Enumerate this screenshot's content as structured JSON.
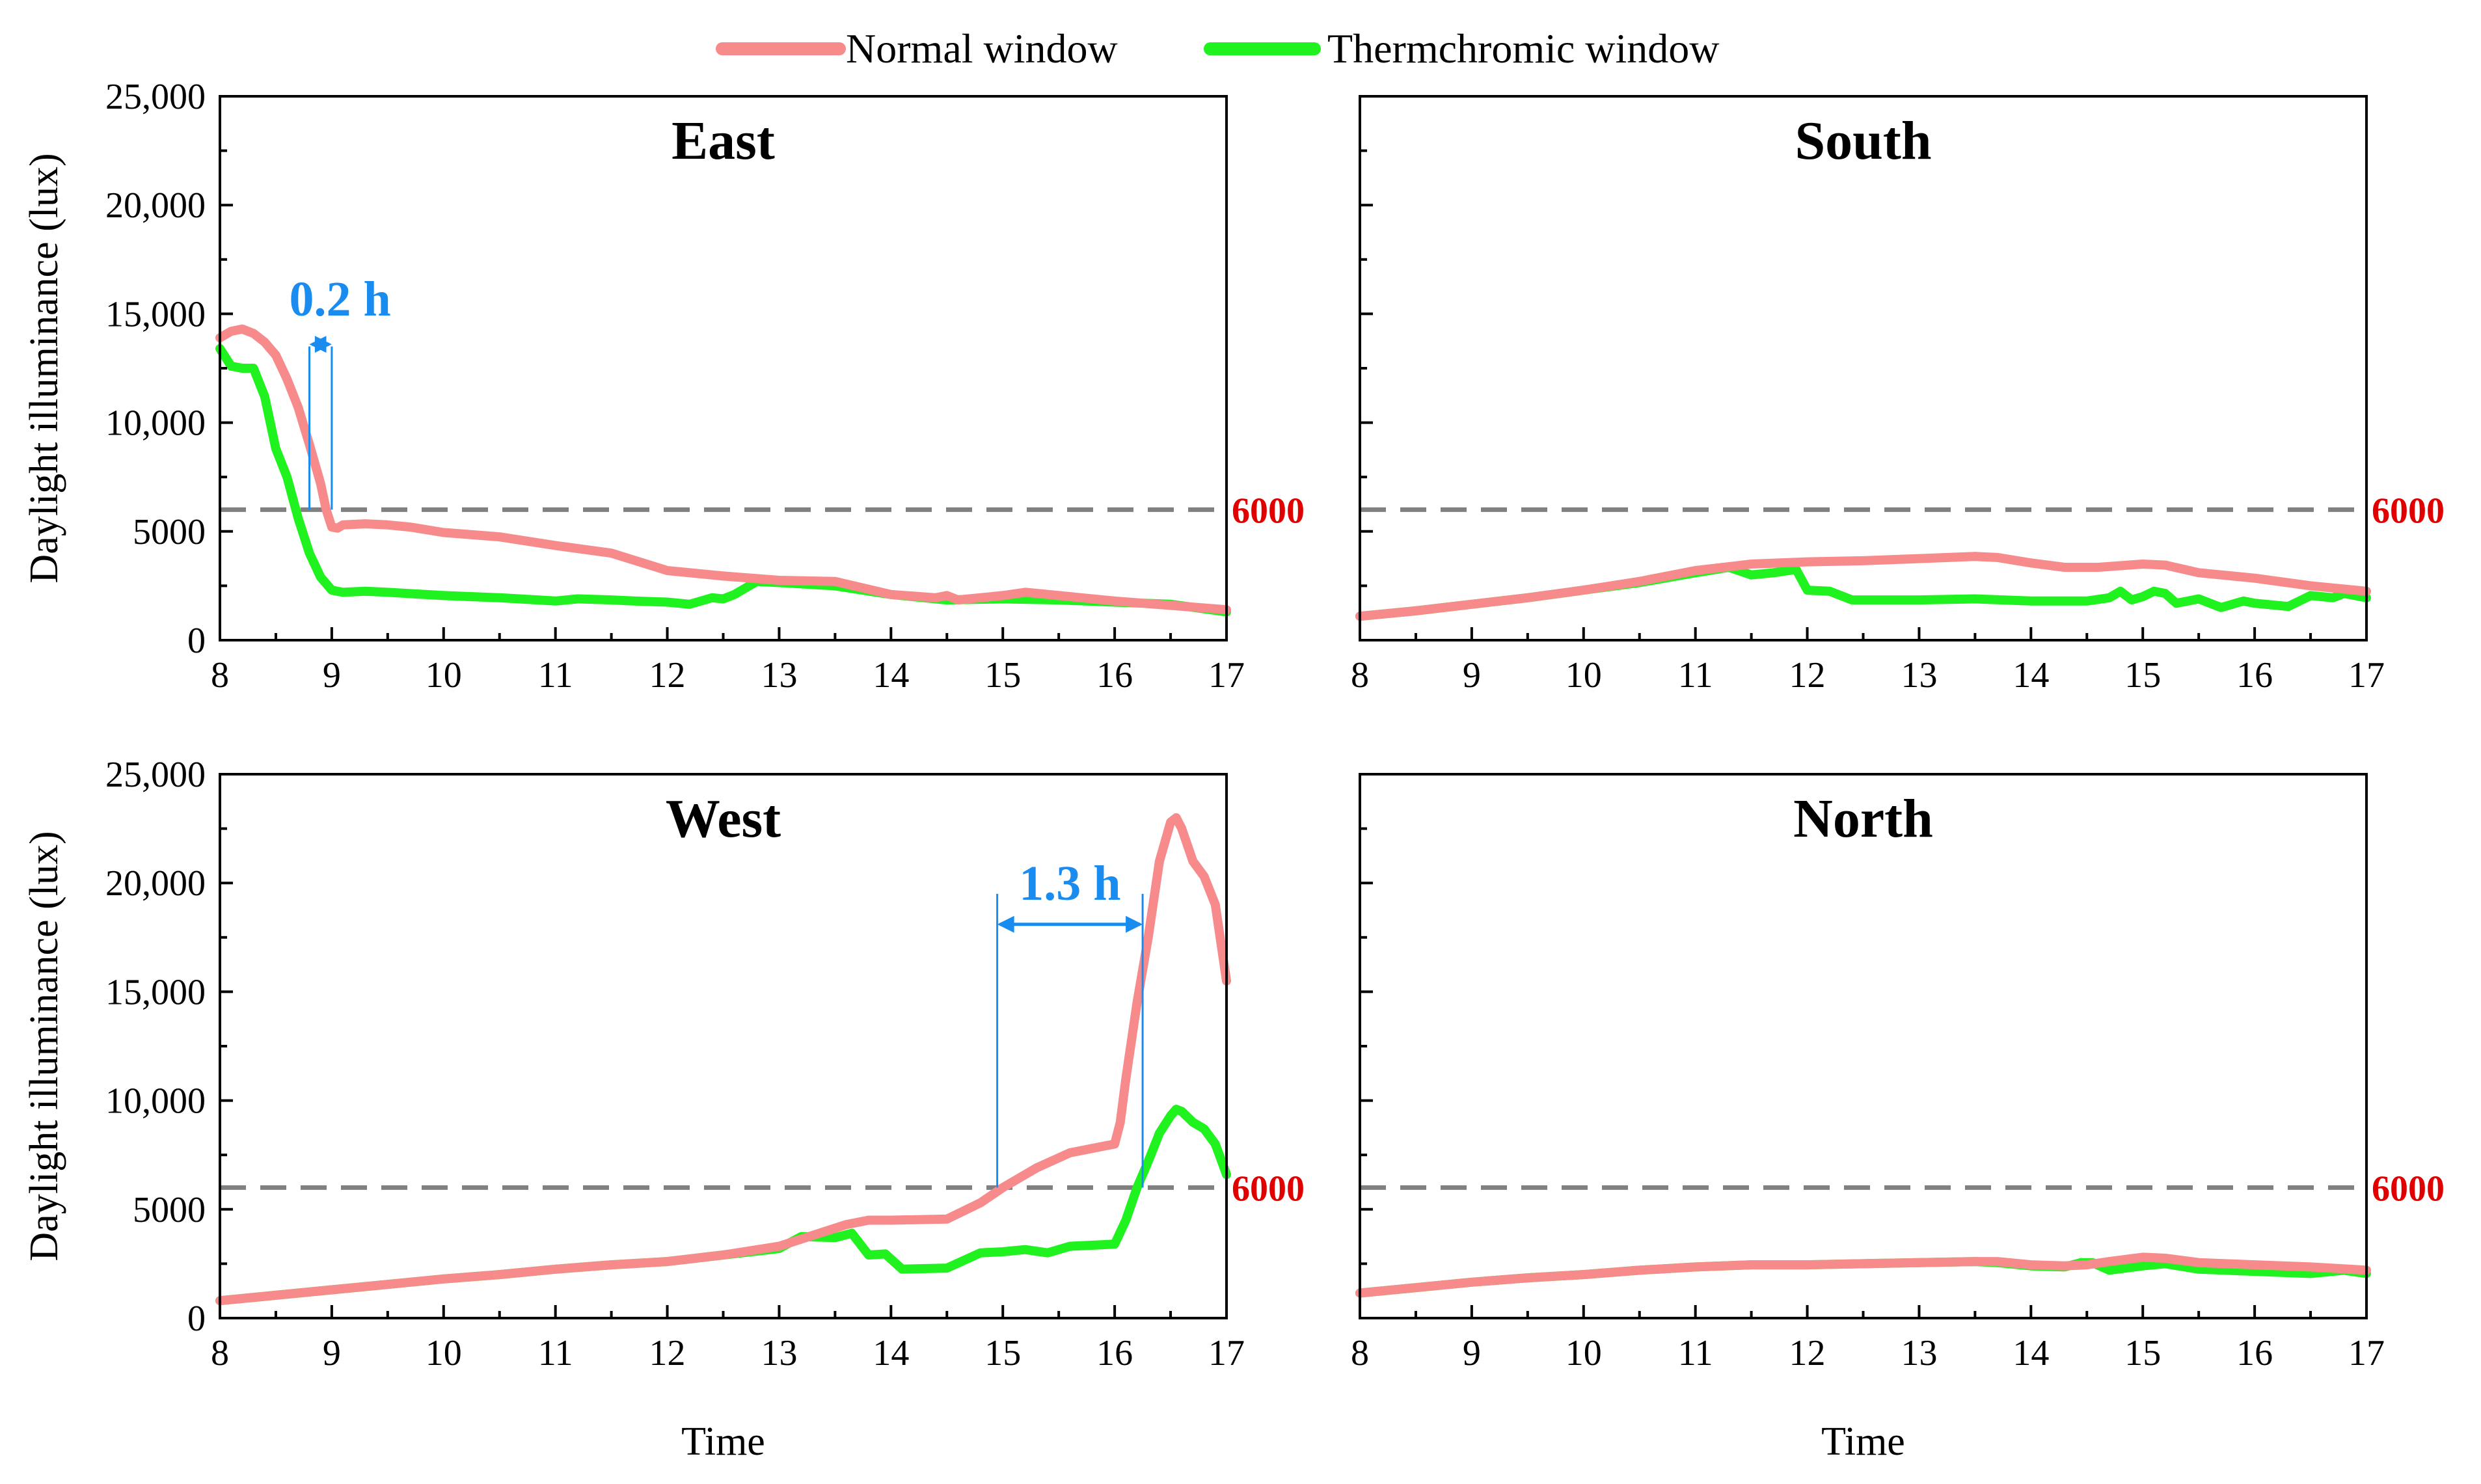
{
  "legend": {
    "normal_label": "Normal window",
    "thermo_label": "Thermchromic window"
  },
  "colors": {
    "normal": "#f78b8b",
    "thermo": "#1ff21f",
    "threshold_line": "#808080",
    "threshold_text": "#e00000",
    "annotation": "#1a8cf0",
    "axis": "#000000"
  },
  "chart_data": [
    {
      "type": "line",
      "title": "East",
      "xlabel": "",
      "ylabel": "Daylight illuminance (lux)",
      "xlim": [
        8,
        17
      ],
      "ylim": [
        0,
        25000
      ],
      "x_ticks": [
        "8",
        "9",
        "10",
        "11",
        "12",
        "13",
        "14",
        "15",
        "16",
        "17"
      ],
      "y_ticks": [
        "0",
        "5000",
        "10,000",
        "15,000",
        "20,000",
        "25,000"
      ],
      "threshold": {
        "value": 6000,
        "label": "6000"
      },
      "annotation": {
        "label": "0.2 h",
        "x_start": 8.8,
        "x_end": 9.0,
        "y_arrow": 13600,
        "y_label": 15700,
        "y_top": 13500,
        "y_bottom": 6000
      },
      "series": [
        {
          "name": "Normal window",
          "x": [
            8.0,
            8.1,
            8.2,
            8.3,
            8.4,
            8.5,
            8.6,
            8.7,
            8.8,
            8.9,
            8.95,
            9.0,
            9.05,
            9.1,
            9.3,
            9.5,
            9.7,
            10.0,
            10.5,
            11.0,
            11.5,
            12.0,
            12.5,
            13.0,
            13.5,
            14.0,
            14.4,
            14.5,
            14.6,
            15.0,
            15.2,
            15.5,
            16.0,
            16.5,
            17.0
          ],
          "values": [
            13900,
            14200,
            14300,
            14100,
            13700,
            13100,
            12000,
            10700,
            9000,
            7200,
            6000,
            5200,
            5150,
            5300,
            5350,
            5300,
            5200,
            4950,
            4750,
            4350,
            4000,
            3200,
            2950,
            2750,
            2700,
            2100,
            1950,
            2050,
            1850,
            2050,
            2200,
            2050,
            1800,
            1600,
            1400
          ]
        },
        {
          "name": "Thermchromic window",
          "x": [
            8.0,
            8.1,
            8.2,
            8.3,
            8.4,
            8.5,
            8.6,
            8.7,
            8.8,
            8.9,
            9.0,
            9.1,
            9.3,
            9.5,
            10.0,
            10.5,
            11.0,
            11.2,
            11.5,
            11.7,
            12.0,
            12.2,
            12.4,
            12.5,
            12.6,
            12.8,
            13.0,
            13.5,
            14.0,
            14.5,
            15.0,
            15.5,
            16.0,
            16.5,
            17.0
          ],
          "values": [
            13400,
            12600,
            12500,
            12500,
            11200,
            8800,
            7500,
            5600,
            4000,
            2900,
            2300,
            2200,
            2250,
            2200,
            2050,
            1950,
            1800,
            1900,
            1850,
            1800,
            1750,
            1650,
            1950,
            1900,
            2100,
            2700,
            2650,
            2500,
            2100,
            1850,
            1900,
            1850,
            1750,
            1650,
            1300
          ]
        }
      ]
    },
    {
      "type": "line",
      "title": "South",
      "xlabel": "",
      "ylabel": "",
      "xlim": [
        8,
        17
      ],
      "ylim": [
        0,
        25000
      ],
      "x_ticks": [
        "8",
        "9",
        "10",
        "11",
        "12",
        "13",
        "14",
        "15",
        "16",
        "17"
      ],
      "y_ticks": [],
      "threshold": {
        "value": 6000,
        "label": "6000"
      },
      "series": [
        {
          "name": "Normal window",
          "x": [
            8.0,
            8.5,
            9.0,
            9.5,
            10.0,
            10.5,
            11.0,
            11.5,
            12.0,
            12.5,
            13.0,
            13.5,
            13.7,
            14.0,
            14.3,
            14.6,
            15.0,
            15.2,
            15.5,
            16.0,
            16.5,
            17.0
          ],
          "values": [
            1100,
            1350,
            1650,
            1950,
            2300,
            2700,
            3200,
            3500,
            3600,
            3650,
            3750,
            3850,
            3800,
            3550,
            3350,
            3350,
            3500,
            3450,
            3100,
            2850,
            2500,
            2250
          ]
        },
        {
          "name": "Thermchromic window",
          "x": [
            8.0,
            8.5,
            9.0,
            9.5,
            10.0,
            10.5,
            11.0,
            11.3,
            11.5,
            11.7,
            11.9,
            12.0,
            12.2,
            12.4,
            13.0,
            13.5,
            14.0,
            14.5,
            14.7,
            14.8,
            14.9,
            15.0,
            15.1,
            15.2,
            15.3,
            15.5,
            15.7,
            15.9,
            16.0,
            16.3,
            16.5,
            16.7,
            16.8,
            17.0
          ],
          "values": [
            1100,
            1350,
            1650,
            1950,
            2300,
            2650,
            3100,
            3350,
            3000,
            3100,
            3250,
            2300,
            2250,
            1850,
            1850,
            1900,
            1800,
            1800,
            1950,
            2250,
            1850,
            2000,
            2250,
            2150,
            1700,
            1900,
            1500,
            1800,
            1700,
            1550,
            2050,
            1950,
            2150,
            1950
          ]
        }
      ]
    },
    {
      "type": "line",
      "title": "West",
      "xlabel": "Time",
      "ylabel": "Daylight illuminance (lux)",
      "xlim": [
        8,
        17
      ],
      "ylim": [
        0,
        25000
      ],
      "x_ticks": [
        "8",
        "9",
        "10",
        "11",
        "12",
        "13",
        "14",
        "15",
        "16",
        "17"
      ],
      "y_ticks": [
        "0",
        "5000",
        "10,000",
        "15,000",
        "20,000",
        "25,000"
      ],
      "threshold": {
        "value": 6000,
        "label": "6000"
      },
      "annotation": {
        "label": "1.3 h",
        "x_start": 14.95,
        "x_end": 16.25,
        "y_arrow": 18100,
        "y_label": 20000,
        "y_top": 19500,
        "y_bottom": 6000
      },
      "series": [
        {
          "name": "Normal window",
          "x": [
            8.0,
            8.5,
            9.0,
            9.5,
            10.0,
            10.5,
            11.0,
            11.5,
            12.0,
            12.5,
            13.0,
            13.3,
            13.6,
            13.8,
            14.0,
            14.5,
            14.8,
            15.0,
            15.3,
            15.6,
            15.9,
            16.0,
            16.05,
            16.1,
            16.2,
            16.3,
            16.4,
            16.5,
            16.55,
            16.6,
            16.7,
            16.8,
            16.9,
            17.0
          ],
          "values": [
            800,
            1050,
            1300,
            1550,
            1800,
            2000,
            2250,
            2450,
            2600,
            2900,
            3300,
            3800,
            4300,
            4500,
            4500,
            4550,
            5300,
            6000,
            6900,
            7600,
            7900,
            8000,
            9000,
            11000,
            14500,
            17500,
            21000,
            22800,
            23000,
            22500,
            21000,
            20300,
            19000,
            15500
          ]
        },
        {
          "name": "Thermchromic window",
          "x": [
            8.0,
            8.5,
            9.0,
            9.5,
            10.0,
            10.5,
            11.0,
            11.5,
            12.0,
            12.5,
            13.0,
            13.2,
            13.5,
            13.65,
            13.8,
            13.95,
            14.1,
            14.5,
            14.8,
            15.0,
            15.2,
            15.4,
            15.6,
            15.8,
            16.0,
            16.1,
            16.2,
            16.3,
            16.4,
            16.5,
            16.55,
            16.6,
            16.7,
            16.8,
            16.9,
            17.0
          ],
          "values": [
            800,
            1050,
            1300,
            1550,
            1800,
            2000,
            2250,
            2450,
            2600,
            2900,
            3200,
            3750,
            3700,
            3900,
            2900,
            2950,
            2250,
            2300,
            3000,
            3050,
            3150,
            3000,
            3300,
            3350,
            3400,
            4500,
            6000,
            7200,
            8500,
            9300,
            9600,
            9500,
            9000,
            8700,
            8000,
            6600
          ]
        }
      ]
    },
    {
      "type": "line",
      "title": "North",
      "xlabel": "Time",
      "ylabel": "",
      "xlim": [
        8,
        17
      ],
      "ylim": [
        0,
        25000
      ],
      "x_ticks": [
        "8",
        "9",
        "10",
        "11",
        "12",
        "13",
        "14",
        "15",
        "16",
        "17"
      ],
      "y_ticks": [],
      "threshold": {
        "value": 6000,
        "label": "6000"
      },
      "series": [
        {
          "name": "Normal window",
          "x": [
            8.0,
            8.5,
            9.0,
            9.5,
            10.0,
            10.5,
            11.0,
            11.5,
            12.0,
            12.5,
            13.0,
            13.5,
            13.7,
            14.0,
            14.3,
            14.5,
            14.7,
            15.0,
            15.2,
            15.5,
            16.0,
            16.5,
            17.0
          ],
          "values": [
            1150,
            1400,
            1650,
            1850,
            2000,
            2200,
            2350,
            2450,
            2450,
            2500,
            2550,
            2600,
            2600,
            2450,
            2400,
            2450,
            2600,
            2800,
            2750,
            2550,
            2450,
            2350,
            2200
          ]
        },
        {
          "name": "Thermchromic window",
          "x": [
            8.0,
            8.5,
            9.0,
            9.5,
            10.0,
            10.5,
            11.0,
            11.5,
            12.0,
            12.5,
            13.0,
            13.5,
            13.7,
            14.0,
            14.3,
            14.45,
            14.55,
            14.7,
            15.0,
            15.2,
            15.5,
            16.0,
            16.5,
            16.8,
            17.0
          ],
          "values": [
            1150,
            1400,
            1650,
            1850,
            2000,
            2200,
            2350,
            2450,
            2450,
            2500,
            2550,
            2600,
            2550,
            2400,
            2350,
            2550,
            2550,
            2200,
            2400,
            2500,
            2250,
            2150,
            2050,
            2200,
            2050
          ]
        }
      ]
    }
  ]
}
